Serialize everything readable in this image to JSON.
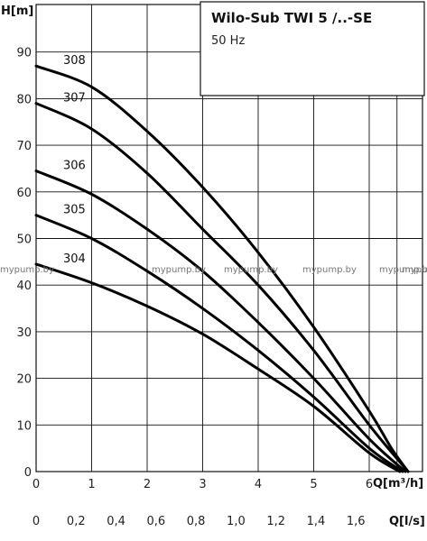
{
  "chart_data": {
    "type": "line",
    "title": "Wilo-Sub TWI 5 /..-SE",
    "subtitle": "50 Hz",
    "ylabel": "H[m]",
    "xlabel": "Q[m³/h]",
    "x2label": "Q[l/s]",
    "xlim": [
      0,
      7
    ],
    "ylim": [
      0,
      100
    ],
    "x_ticks": [
      "0",
      "1",
      "2",
      "3",
      "4",
      "5",
      "6"
    ],
    "y_ticks": [
      "0",
      "10",
      "20",
      "30",
      "40",
      "50",
      "60",
      "70",
      "80",
      "90"
    ],
    "x2_ticks": [
      "0",
      "0,2",
      "0,4",
      "0,6",
      "0,8",
      "1,0",
      "1,2",
      "1,4",
      "1,6"
    ],
    "grid": true,
    "series": [
      {
        "name": "308",
        "x": [
          0,
          1,
          2,
          3,
          4,
          5,
          6,
          6.4,
          6.7
        ],
        "y": [
          87,
          82.5,
          73,
          61,
          47,
          31,
          13,
          5,
          0
        ]
      },
      {
        "name": "307",
        "x": [
          0,
          1,
          2,
          3,
          4,
          5,
          6,
          6.7
        ],
        "y": [
          79,
          73.5,
          64,
          52,
          40,
          26,
          10,
          0
        ]
      },
      {
        "name": "306",
        "x": [
          0,
          1,
          2,
          3,
          4,
          5,
          6,
          6.65
        ],
        "y": [
          64.5,
          59.5,
          52,
          43,
          32,
          20,
          7,
          0
        ]
      },
      {
        "name": "305",
        "x": [
          0,
          1,
          2,
          3,
          4,
          5,
          6,
          6.6
        ],
        "y": [
          55,
          50,
          43,
          35,
          26,
          16,
          5,
          0
        ]
      },
      {
        "name": "304",
        "x": [
          0,
          1,
          2,
          3,
          4,
          5,
          6,
          6.55
        ],
        "y": [
          44.5,
          40.5,
          35.5,
          29.5,
          22,
          14,
          4,
          0
        ]
      }
    ],
    "watermarks": [
      "mypump.by",
      "mypump.by",
      "mypump.by",
      "mypump.by",
      "mypump.by",
      "mypump.by"
    ]
  }
}
